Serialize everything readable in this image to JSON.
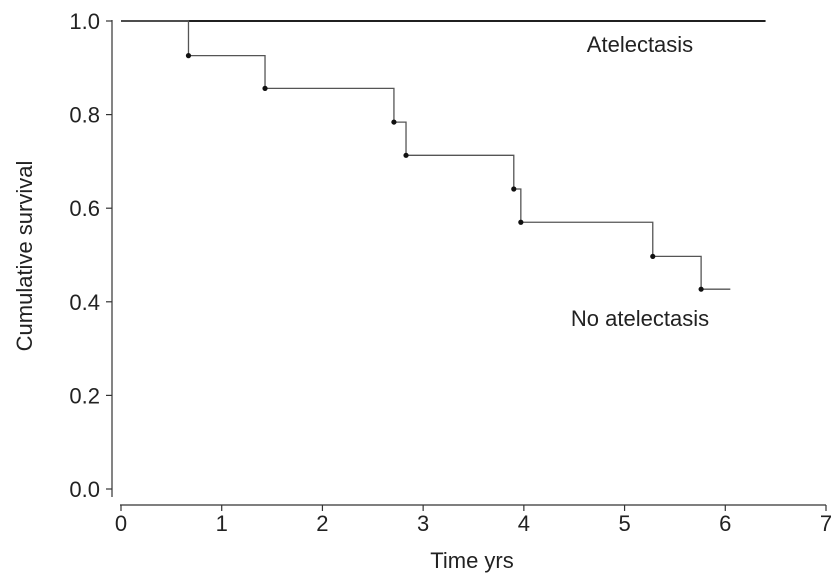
{
  "chart_data": {
    "type": "line",
    "subtype": "step",
    "title": "",
    "xlabel": "Time yrs",
    "ylabel": "Cumulative survival",
    "xlim": [
      0,
      7
    ],
    "ylim": [
      0,
      1.0
    ],
    "x_ticks": [
      "0",
      "1",
      "2",
      "3",
      "4",
      "5",
      "6",
      "7"
    ],
    "y_ticks": [
      "0.0",
      "0.2",
      "0.4",
      "0.6",
      "0.8",
      "1.0"
    ],
    "grid": false,
    "series": [
      {
        "name": "Atelectasis",
        "color": "#000000",
        "points": [
          [
            0,
            1.0
          ],
          [
            6.4,
            1.0
          ]
        ]
      },
      {
        "name": "No atelectasis",
        "color": "#555555",
        "points": [
          [
            0,
            1.0
          ],
          [
            0.67,
            0.926
          ],
          [
            1.43,
            0.856
          ],
          [
            2.71,
            0.784
          ],
          [
            2.83,
            0.713
          ],
          [
            3.9,
            0.641
          ],
          [
            3.97,
            0.57
          ],
          [
            5.28,
            0.497
          ],
          [
            5.76,
            0.427
          ],
          [
            6.05,
            0.427
          ]
        ],
        "censored": [
          [
            0.67,
            0.926
          ],
          [
            1.43,
            0.856
          ],
          [
            2.71,
            0.784
          ],
          [
            2.83,
            0.713
          ],
          [
            3.9,
            0.641
          ],
          [
            3.97,
            0.57
          ],
          [
            5.28,
            0.497
          ],
          [
            5.76,
            0.427
          ]
        ]
      }
    ]
  }
}
